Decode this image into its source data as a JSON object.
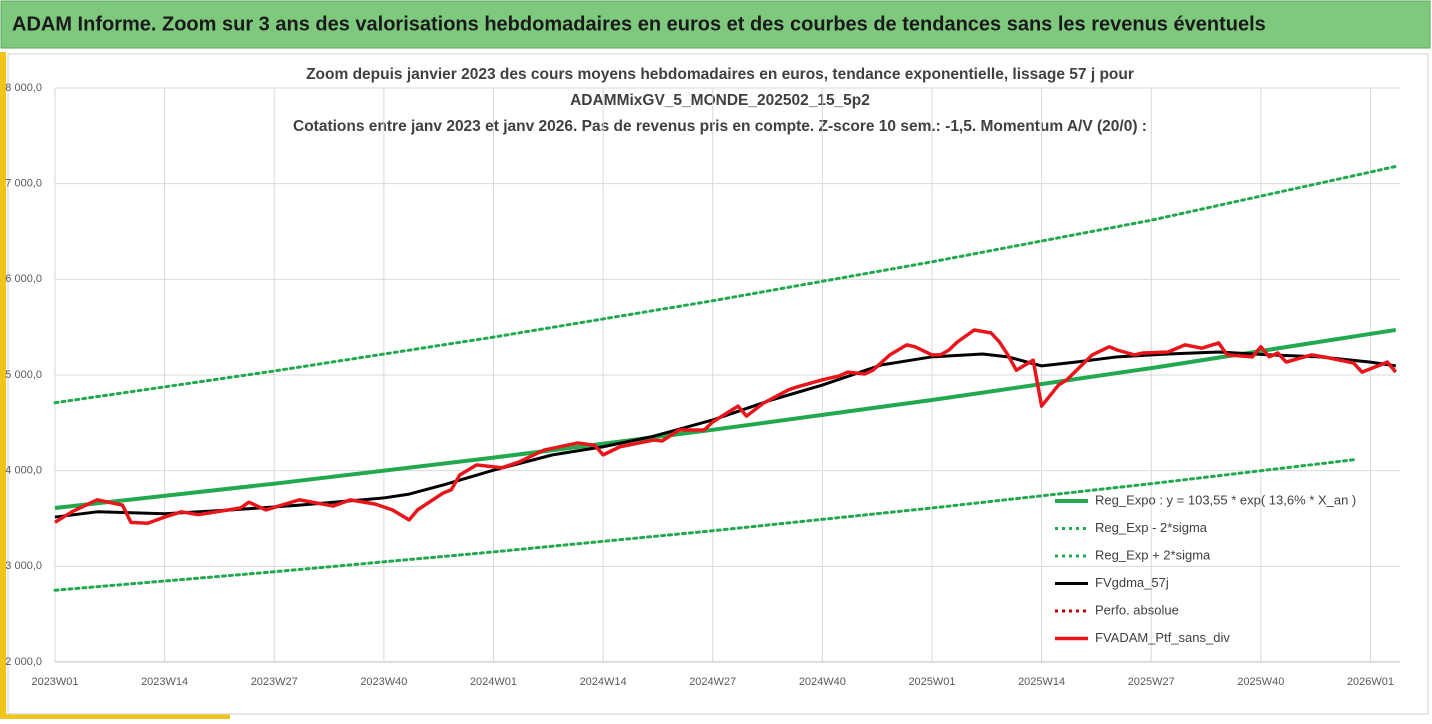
{
  "header": {
    "title": "ADAM Informe. Zoom sur 3 ans des valorisations hebdomadaires en euros et des courbes de tendances sans les revenus éventuels"
  },
  "chart_data": {
    "type": "line",
    "title": [
      "Zoom depuis janvier 2023 des cours moyens hebdomadaires  en euros, tendance exponentielle, lissage 57 j pour",
      "ADAMMixGV_5_MONDE_202502_15_5p2",
      "Cotations entre janv 2023 et janv 2026. Pas de revenus pris en compte. Z-score 10 sem.: -1,5. Momentum A/V (20/0) :"
    ],
    "xlim": [
      0,
      159.5
    ],
    "xticks": [
      {
        "value": 0,
        "label": "2023W01"
      },
      {
        "value": 13,
        "label": "2023W14"
      },
      {
        "value": 26,
        "label": "2023W27"
      },
      {
        "value": 39,
        "label": "2023W40"
      },
      {
        "value": 52,
        "label": "2024W01"
      },
      {
        "value": 65,
        "label": "2024W14"
      },
      {
        "value": 78,
        "label": "2024W27"
      },
      {
        "value": 91,
        "label": "2024W40"
      },
      {
        "value": 104,
        "label": "2025W01"
      },
      {
        "value": 117,
        "label": "2025W14"
      },
      {
        "value": 130,
        "label": "2025W27"
      },
      {
        "value": 143,
        "label": "2025W40"
      },
      {
        "value": 156,
        "label": "2026W01"
      }
    ],
    "ylim": [
      2000,
      8000
    ],
    "yticks": [
      {
        "value": 2000,
        "label": "2 000,0"
      },
      {
        "value": 3000,
        "label": "3 000,0"
      },
      {
        "value": 4000,
        "label": "4 000,0"
      },
      {
        "value": 5000,
        "label": "5 000,0"
      },
      {
        "value": 6000,
        "label": "6 000,0"
      },
      {
        "value": 7000,
        "label": "7 000,0"
      },
      {
        "value": 8000,
        "label": "8 000,0"
      }
    ],
    "grid": true,
    "legend": "bottom-right",
    "series": [
      {
        "name": "Reg_Expo : y = 103,55 * exp( 13,6% *  X_an )",
        "color": "#22a94f",
        "style": "solid",
        "width": 4,
        "x": [
          0,
          26,
          52,
          78,
          104,
          130,
          159
        ],
        "values": [
          3610,
          3864,
          4136,
          4427,
          4739,
          5072,
          5471
        ]
      },
      {
        "name": "Reg_Exp - 2*sigma",
        "color": "#22a94f",
        "style": "dotted",
        "width": 3,
        "x": [
          0,
          26,
          52,
          78,
          104,
          130,
          154
        ],
        "values": [
          2750,
          2943,
          3151,
          3372,
          3610,
          3864,
          4114
        ]
      },
      {
        "name": "Reg_Exp + 2*sigma",
        "color": "#22a94f",
        "style": "dotted",
        "width": 3,
        "x": [
          0,
          26,
          52,
          78,
          104,
          130,
          159
        ],
        "values": [
          4710,
          5042,
          5396,
          5776,
          6183,
          6618,
          7180
        ]
      },
      {
        "name": "FVgdma_57j",
        "color": "#000000",
        "style": "solid",
        "width": 3,
        "x": [
          0,
          5,
          13,
          21,
          29,
          39,
          42,
          46,
          52,
          59,
          65,
          71,
          78,
          85,
          91,
          98,
          104,
          110,
          113,
          117,
          121,
          126,
          132,
          138,
          144,
          150,
          156,
          159
        ],
        "values": [
          3515,
          3570,
          3550,
          3590,
          3640,
          3715,
          3755,
          3850,
          4005,
          4165,
          4250,
          4360,
          4530,
          4740,
          4895,
          5105,
          5190,
          5220,
          5190,
          5095,
          5135,
          5190,
          5220,
          5240,
          5210,
          5190,
          5135,
          5095
        ]
      },
      {
        "name": "Perfo. absolue",
        "color": "#c00000",
        "style": "dotted",
        "width": 3,
        "x": [],
        "values": []
      },
      {
        "name": "FVADAM_Ptf_sans_div",
        "color": "#e8161b",
        "style": "solid",
        "width": 3.5,
        "x": [
          0,
          2,
          5,
          8,
          9,
          11,
          13,
          15,
          17,
          22,
          23,
          25,
          29,
          33,
          35,
          38,
          40,
          42,
          43,
          46,
          47,
          48,
          50,
          53,
          55,
          58,
          62,
          64,
          65,
          67,
          71,
          72,
          74,
          77,
          78,
          81,
          82,
          84,
          87,
          88,
          91,
          93,
          94,
          96,
          97,
          99,
          101,
          102,
          104,
          105,
          106,
          107,
          109,
          111,
          112,
          113,
          114,
          116,
          117,
          119,
          120,
          123,
          125,
          126,
          128,
          129,
          132,
          134,
          136,
          138,
          139,
          142,
          143,
          144,
          145,
          146,
          149,
          151,
          154,
          155,
          158,
          159
        ],
        "values": [
          3460,
          3570,
          3695,
          3640,
          3460,
          3450,
          3515,
          3570,
          3540,
          3610,
          3670,
          3590,
          3695,
          3630,
          3695,
          3650,
          3590,
          3485,
          3590,
          3765,
          3800,
          3955,
          4060,
          4030,
          4090,
          4215,
          4290,
          4265,
          4165,
          4250,
          4320,
          4310,
          4425,
          4425,
          4510,
          4675,
          4570,
          4705,
          4845,
          4875,
          4950,
          4990,
          5030,
          5010,
          5050,
          5210,
          5315,
          5295,
          5210,
          5210,
          5260,
          5345,
          5470,
          5440,
          5345,
          5210,
          5050,
          5155,
          4675,
          4895,
          4950,
          5210,
          5295,
          5260,
          5210,
          5230,
          5240,
          5315,
          5280,
          5335,
          5210,
          5190,
          5295,
          5190,
          5230,
          5135,
          5210,
          5180,
          5125,
          5030,
          5135,
          5030
        ]
      }
    ]
  }
}
